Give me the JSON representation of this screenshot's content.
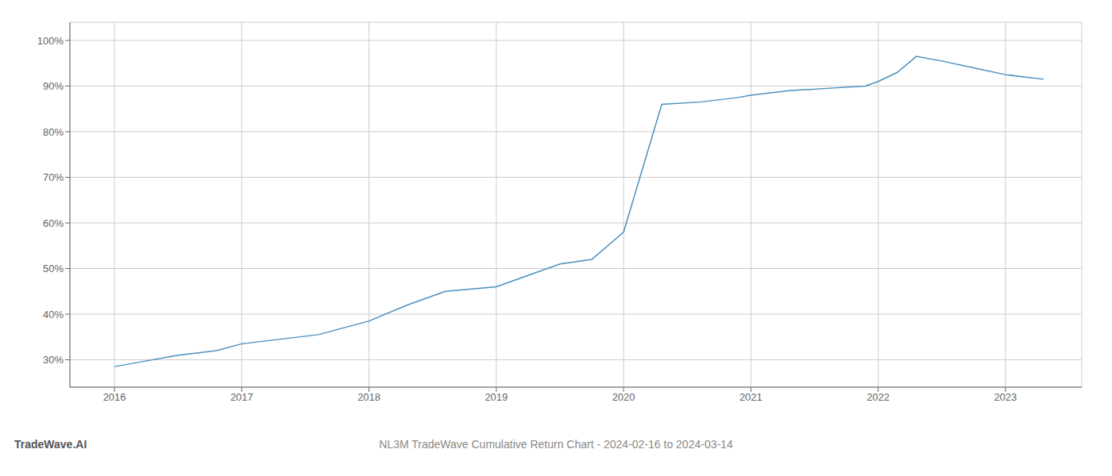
{
  "chart_data": {
    "type": "line",
    "title": "NL3M TradeWave Cumulative Return Chart - 2024-02-16 to 2024-03-14",
    "annotations": [
      {
        "text": "TradeWave.AI"
      }
    ],
    "x": [
      2016.0,
      2016.2,
      2016.5,
      2016.8,
      2017.0,
      2017.3,
      2017.6,
      2018.0,
      2018.3,
      2018.6,
      2019.0,
      2019.2,
      2019.5,
      2019.75,
      2020.0,
      2020.15,
      2020.3,
      2020.6,
      2020.9,
      2021.0,
      2021.3,
      2021.6,
      2021.9,
      2022.0,
      2022.15,
      2022.3,
      2022.5,
      2022.75,
      2023.0,
      2023.3
    ],
    "values": [
      28.5,
      29.5,
      31.0,
      32.0,
      33.5,
      34.5,
      35.5,
      38.5,
      42.0,
      45.0,
      46.0,
      48.0,
      51.0,
      52.0,
      58.0,
      72.0,
      86.0,
      86.5,
      87.5,
      88.0,
      89.0,
      89.5,
      90.0,
      91.0,
      93.0,
      96.5,
      95.5,
      94.0,
      92.5,
      91.5
    ],
    "color": "#4a8fc0",
    "xlim": [
      2015.65,
      2023.6
    ],
    "ylim": [
      24,
      104
    ],
    "xticks": [
      2016,
      2017,
      2018,
      2019,
      2020,
      2021,
      2022,
      2023
    ],
    "yticks": [
      {
        "value": 30,
        "label": "30%"
      },
      {
        "value": 40,
        "label": "40%"
      },
      {
        "value": 50,
        "label": "50%"
      },
      {
        "value": 60,
        "label": "60%"
      },
      {
        "value": 70,
        "label": "70%"
      },
      {
        "value": 80,
        "label": "80%"
      },
      {
        "value": 90,
        "label": "90%"
      },
      {
        "value": 100,
        "label": "100%"
      }
    ],
    "grid": true
  }
}
